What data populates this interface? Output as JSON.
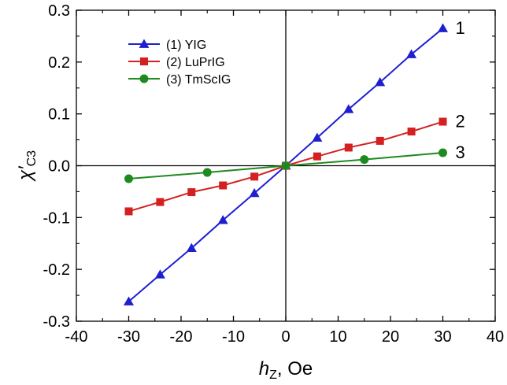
{
  "chart_data": {
    "type": "line",
    "xlabel": {
      "main": "h",
      "sub": "Z",
      "rest": ", Oe"
    },
    "ylabel": {
      "main": "χ′",
      "sub": "C3"
    },
    "xlim": [
      -40,
      40
    ],
    "ylim": [
      -0.3,
      0.3
    ],
    "xticks": [
      -40,
      -30,
      -20,
      -10,
      0,
      10,
      20,
      30,
      40
    ],
    "yticks": [
      -0.3,
      -0.2,
      -0.1,
      0.0,
      0.1,
      0.2,
      0.3
    ],
    "xtick_labels": [
      "-40",
      "-30",
      "-20",
      "-10",
      "0",
      "10",
      "20",
      "30",
      "40"
    ],
    "ytick_labels": [
      "-0.3",
      "-0.2",
      "-0.1",
      "0.0",
      "0.1",
      "0.2",
      "0.3"
    ],
    "grid": false,
    "zero_lines": true,
    "legend_position": "top-left",
    "series": [
      {
        "name": "(1) YIG",
        "end_label": "1",
        "color": "#1f1fd0",
        "marker": "triangle",
        "x": [
          -30,
          -24,
          -18,
          -12,
          -6,
          0,
          6,
          12,
          18,
          24,
          30
        ],
        "y": [
          -0.262,
          -0.21,
          -0.159,
          -0.105,
          -0.053,
          0.0,
          0.054,
          0.109,
          0.161,
          0.215,
          0.265
        ]
      },
      {
        "name": "(2) LuPrIG",
        "end_label": "2",
        "color": "#d42020",
        "marker": "square",
        "x": [
          -30,
          -24,
          -18,
          -12,
          -6,
          0,
          6,
          12,
          18,
          24,
          30
        ],
        "y": [
          -0.088,
          -0.07,
          -0.051,
          -0.038,
          -0.021,
          0.0,
          0.018,
          0.035,
          0.048,
          0.066,
          0.085
        ]
      },
      {
        "name": "(3) TmScIG",
        "end_label": "3",
        "color": "#1e8a1e",
        "marker": "circle",
        "x": [
          -30,
          -15,
          0,
          15,
          30
        ],
        "y": [
          -0.025,
          -0.013,
          0.0,
          0.012,
          0.025
        ]
      }
    ]
  }
}
